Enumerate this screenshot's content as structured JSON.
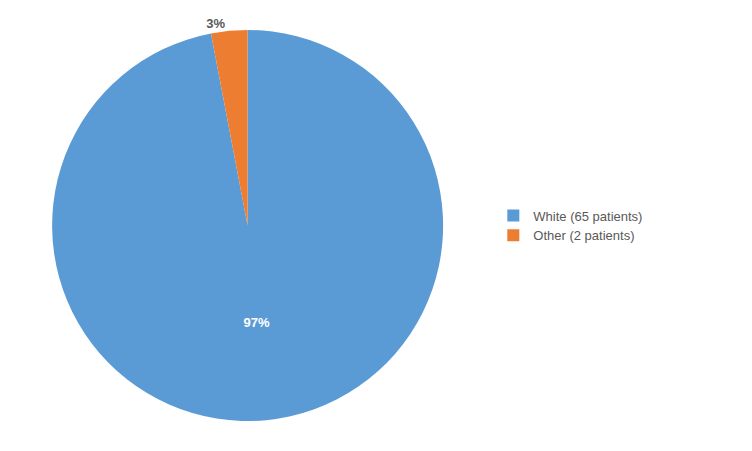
{
  "chart_data": {
    "type": "pie",
    "categories": [
      "White (65 patients)",
      "Other (2 patients)"
    ],
    "values": [
      97,
      3
    ],
    "value_labels": [
      "97%",
      "3%"
    ],
    "colors": [
      "#5B9BD5",
      "#ED7D31"
    ],
    "data_labels": true,
    "legend": "right"
  }
}
